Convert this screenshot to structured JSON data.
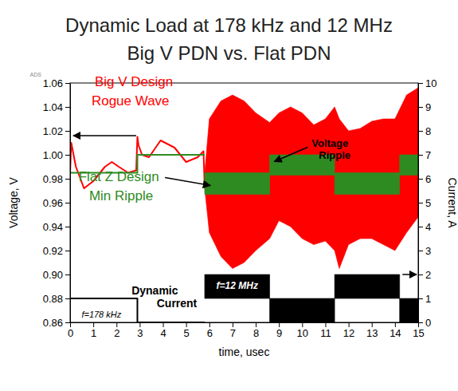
{
  "chart_data": {
    "type": "line",
    "title": "Dynamic Load at 178 kHz and 12 MHz",
    "subtitle": "Big V PDN vs. Flat PDN",
    "x_label": "time, usec",
    "y_label": "Voltage, V",
    "y2_label": "Current, A",
    "source_label": "ADS",
    "xlim": [
      0,
      15
    ],
    "xticks": [
      0,
      1,
      2,
      3,
      4,
      5,
      6,
      7,
      8,
      9,
      10,
      11,
      12,
      13,
      14,
      15
    ],
    "ylim": [
      0.86,
      1.06
    ],
    "yticks": [
      0.86,
      0.88,
      {
        "value": 0.9,
        "label": "0.90"
      },
      0.92,
      0.94,
      0.96,
      0.98,
      {
        "value": 1,
        "label": "1.00"
      },
      1.02,
      1.04,
      1.06
    ],
    "y2lim": [
      0,
      10
    ],
    "y2ticks": [
      0,
      1,
      2,
      3,
      4,
      5,
      6,
      7,
      8,
      9,
      10
    ],
    "series": [
      {
        "type": "area",
        "color": "#ff0000",
        "x": [
          5.8,
          6.0,
          6.5,
          7.0,
          7.5,
          8.0,
          8.6,
          9.0,
          9.5,
          10.0,
          10.5,
          11.0,
          11.4,
          11.6,
          12.0,
          12.5,
          13.0,
          13.5,
          14.0,
          14.5,
          15.0
        ],
        "lower": [
          0.972,
          0.935,
          0.915,
          0.905,
          0.91,
          0.92,
          0.93,
          0.945,
          0.94,
          0.93,
          0.925,
          0.928,
          0.92,
          0.905,
          0.925,
          0.93,
          0.93,
          0.925,
          0.92,
          0.935,
          0.948
        ],
        "upper": [
          0.985,
          1.03,
          1.045,
          1.05,
          1.045,
          1.035,
          1.027,
          1.035,
          1.04,
          1.035,
          1.025,
          1.03,
          1.04,
          1.03,
          1.02,
          1.022,
          1.028,
          1.03,
          1.03,
          1.05,
          1.056
        ]
      },
      {
        "type": "line",
        "color": "#ff0000",
        "x": [
          0,
          0.05,
          0.25,
          0.6,
          1.0,
          1.5,
          1.8,
          2.1,
          2.5,
          2.85,
          2.9,
          2.95,
          3.1,
          3.4,
          3.9,
          4.5,
          5.0,
          5.5,
          5.75,
          5.8
        ],
        "values": [
          0.985,
          1.01,
          0.99,
          0.972,
          0.978,
          0.99,
          0.994,
          0.99,
          0.985,
          0.987,
          1.015,
          1.008,
          1.0,
          0.998,
          1.012,
          1.006,
          0.994,
          0.998,
          1.003,
          0.972
        ]
      },
      {
        "type": "area",
        "color": "#2e8b22",
        "x": [
          5.8,
          8.6,
          8.6,
          11.4,
          11.4,
          14.2,
          14.2,
          15
        ],
        "lower": [
          0.967,
          0.967,
          0.983,
          0.983,
          0.967,
          0.967,
          0.983,
          0.983
        ],
        "upper": [
          0.985,
          0.985,
          1.0,
          1.0,
          0.985,
          0.985,
          1.0,
          1.0
        ]
      },
      {
        "type": "line",
        "color": "#2e8b22",
        "x": [
          0,
          2.9,
          2.9,
          5.8
        ],
        "values": [
          0.985,
          0.985,
          1.0,
          1.0
        ]
      },
      {
        "type": "line",
        "color": "#000000",
        "axis": "y2",
        "x": [
          0,
          0,
          2.9,
          2.9,
          5.8
        ],
        "values": [
          0,
          1,
          1,
          0,
          0
        ]
      },
      {
        "type": "area",
        "color": "#000000",
        "axis": "y2",
        "x": [
          5.8,
          8.6,
          8.6,
          11.4,
          11.4,
          14.2,
          14.2,
          15
        ],
        "lower": [
          1,
          1,
          0,
          0,
          1,
          1,
          0,
          0
        ],
        "upper": [
          2,
          2,
          1,
          1,
          2,
          2,
          1,
          1
        ]
      }
    ],
    "annotations": [
      {
        "text": "Big V Design",
        "color": "#ff0000",
        "x": 2.75,
        "y": 1.06
      },
      {
        "text": "Rogue Wave",
        "color": "#ff0000",
        "x": 2.6,
        "y": 1.044
      },
      {
        "text": "Flat Z Design",
        "color": "#2e8b22",
        "x": 2.1,
        "y": 0.981
      },
      {
        "text": "Min Ripple",
        "color": "#2e8b22",
        "x": 2.2,
        "y": 0.965
      },
      {
        "text": "Voltage",
        "color": "#000000",
        "x": 11.2,
        "y": 1.009
      },
      {
        "text": "Ripple",
        "color": "#000000",
        "x": 11.4,
        "y": 0.999
      },
      {
        "text": "Dynamic",
        "color": "#000000",
        "x": 3.65,
        "y": 0.886
      },
      {
        "text": "Current",
        "color": "#000000",
        "x": 4.6,
        "y": 0.875
      },
      {
        "text": "f=178 kHz",
        "color": "#000000",
        "x": 1.35,
        "y": 0.866
      },
      {
        "text": "f=12 MHz",
        "color": "#ffffff",
        "x": 7.2,
        "y": 0.89
      }
    ]
  }
}
